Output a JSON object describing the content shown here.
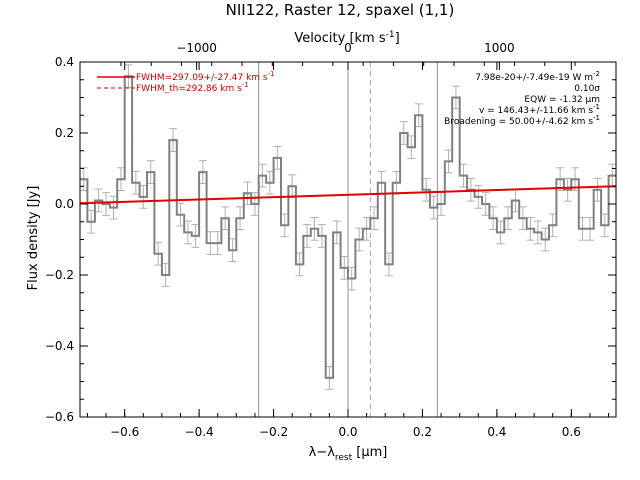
{
  "chart_data": {
    "type": "line",
    "title": "NII122, Raster 12, spaxel (1,1)",
    "xlabel": "λ−λ",
    "xlabel_sub": "rest",
    "xlabel_unit": " [μm]",
    "ylabel": "Flux density [Jy]",
    "top_axis": {
      "label": "Velocity [km s",
      "label_sup": "-1",
      "label_end": "]",
      "ticks": [
        -1000,
        0,
        1000
      ],
      "tick_labels": [
        "−1000",
        "0",
        "1000"
      ]
    },
    "xlim": [
      -0.72,
      0.72
    ],
    "ylim": [
      -0.6,
      0.4
    ],
    "xticks": [
      -0.6,
      -0.4,
      -0.2,
      0.0,
      0.2,
      0.4,
      0.6
    ],
    "xtick_labels": [
      "−0.6",
      "−0.4",
      "−0.2",
      "0.0",
      "0.2",
      "0.4",
      "0.6"
    ],
    "yticks": [
      -0.6,
      -0.4,
      -0.2,
      0.0,
      0.2,
      0.4
    ],
    "ytick_labels": [
      "−0.6",
      "−0.4",
      "−0.2",
      "0.0",
      "0.2",
      "0.4"
    ],
    "vertical_lines": [
      -0.24,
      0.0,
      0.24
    ],
    "dashed_line": 0.06,
    "series": [
      {
        "name": "spectrum",
        "style": "step",
        "color": "#808080",
        "x": [
          -0.71,
          -0.69,
          -0.67,
          -0.65,
          -0.63,
          -0.61,
          -0.59,
          -0.57,
          -0.55,
          -0.53,
          -0.51,
          -0.49,
          -0.47,
          -0.45,
          -0.43,
          -0.41,
          -0.39,
          -0.37,
          -0.35,
          -0.33,
          -0.31,
          -0.29,
          -0.27,
          -0.25,
          -0.23,
          -0.21,
          -0.19,
          -0.17,
          -0.15,
          -0.13,
          -0.11,
          -0.09,
          -0.07,
          -0.05,
          -0.03,
          -0.01,
          0.01,
          0.03,
          0.05,
          0.07,
          0.09,
          0.11,
          0.13,
          0.15,
          0.17,
          0.19,
          0.21,
          0.23,
          0.25,
          0.27,
          0.29,
          0.31,
          0.33,
          0.35,
          0.37,
          0.39,
          0.41,
          0.43,
          0.45,
          0.47,
          0.49,
          0.51,
          0.53,
          0.55,
          0.57,
          0.59,
          0.61,
          0.63,
          0.65,
          0.67,
          0.69,
          0.71
        ],
        "y": [
          0.07,
          -0.05,
          0.01,
          0.0,
          -0.01,
          0.07,
          0.36,
          0.06,
          0.02,
          0.09,
          -0.14,
          -0.2,
          0.18,
          -0.03,
          -0.08,
          -0.09,
          0.09,
          -0.11,
          -0.11,
          -0.04,
          -0.13,
          -0.04,
          0.03,
          0.0,
          0.08,
          0.06,
          0.13,
          -0.06,
          0.05,
          -0.17,
          -0.09,
          -0.07,
          -0.09,
          -0.49,
          -0.08,
          -0.18,
          -0.21,
          -0.1,
          -0.07,
          -0.04,
          0.06,
          -0.17,
          0.06,
          0.2,
          0.16,
          0.25,
          0.04,
          -0.01,
          0.0,
          0.12,
          0.3,
          0.08,
          0.04,
          0.02,
          0.0,
          -0.04,
          -0.08,
          -0.04,
          0.01,
          -0.04,
          -0.07,
          -0.08,
          -0.1,
          -0.06,
          0.07,
          0.04,
          0.07,
          -0.07,
          -0.07,
          0.04,
          -0.06,
          0.08
        ],
        "err": 0.032
      },
      {
        "name": "FWHM=297.09+/-27.47 km s",
        "sup": "-1",
        "style": "line",
        "color": "#e00000",
        "x": [
          -0.72,
          0.72
        ],
        "y": [
          0.002,
          0.05
        ]
      },
      {
        "name": "FWHM_th=292.86 km s",
        "sup": "-1",
        "style": "dashed",
        "color": "#e00000",
        "x": [],
        "y": []
      }
    ],
    "annotations": [
      {
        "main": "7.98e-20+/-7.49e-19 W m",
        "sup": "-2"
      },
      {
        "main": "0.10σ",
        "sup": ""
      },
      {
        "main": "EQW = -1.32 μm",
        "sup": ""
      },
      {
        "main": "v = 146.43+/-11.66 km s",
        "sup": "-1"
      },
      {
        "main": "Broadening = 50.00+/-4.62 km s",
        "sup": "-1"
      }
    ]
  }
}
